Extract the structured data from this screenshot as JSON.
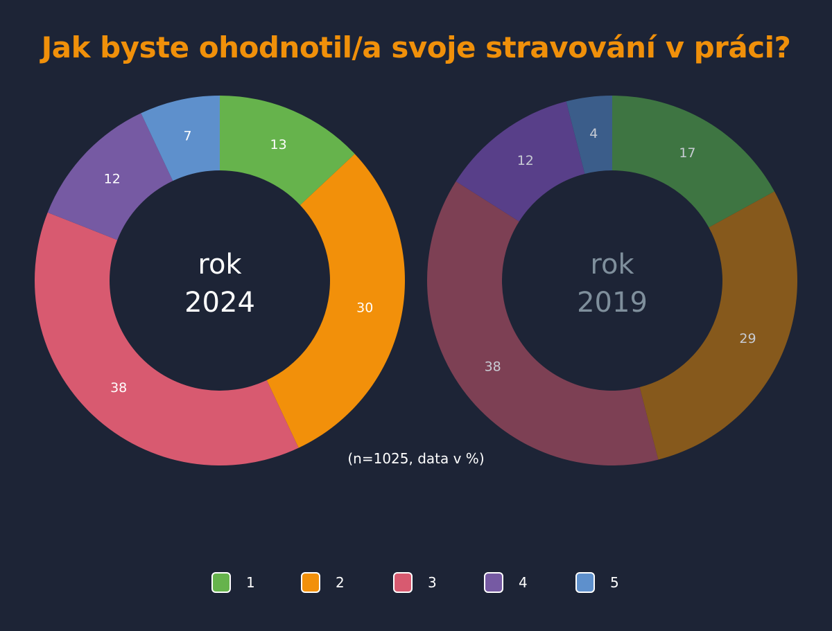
{
  "title": "Jak byste ohodnotil/a svoje stravování v práci?",
  "note": "(n=1025, data v %)",
  "legend": [
    {
      "label": "1",
      "color": "#66b34c"
    },
    {
      "label": "2",
      "color": "#f2900a"
    },
    {
      "label": "3",
      "color": "#d85a70"
    },
    {
      "label": "4",
      "color": "#765aa3"
    },
    {
      "label": "5",
      "color": "#5e90cc"
    }
  ],
  "charts": [
    {
      "center_line1": "rok",
      "center_line2": "2024",
      "center_color": "#ffffff",
      "label_color": "#ffffff",
      "colors": [
        "#66b34c",
        "#f2900a",
        "#d85a70",
        "#765aa3",
        "#5e90cc"
      ]
    },
    {
      "center_line1": "rok",
      "center_line2": "2019",
      "center_color": "#7f8f9c",
      "label_color": "#c8ccd4",
      "colors": [
        "#3e7542",
        "#86591c",
        "#7d4054",
        "#583f89",
        "#3b5d8a"
      ]
    }
  ],
  "chart_data": [
    {
      "type": "pie",
      "title": "Jak byste ohodnotil/a svoje stravování v práci? — rok 2024",
      "categories": [
        "1",
        "2",
        "3",
        "4",
        "5"
      ],
      "values": [
        13,
        30,
        38,
        12,
        7
      ],
      "unit": "%",
      "donut": true,
      "center_label": "rok 2024",
      "note": "(n=1025, data v %)",
      "legend_position": "bottom"
    },
    {
      "type": "pie",
      "title": "Jak byste ohodnotil/a svoje stravování v práci? — rok 2019",
      "categories": [
        "1",
        "2",
        "3",
        "4",
        "5"
      ],
      "values": [
        17,
        29,
        38,
        12,
        4
      ],
      "unit": "%",
      "donut": true,
      "center_label": "rok 2019",
      "legend_position": "bottom"
    }
  ]
}
